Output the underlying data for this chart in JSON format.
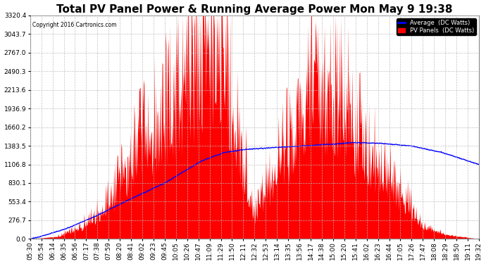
{
  "title": "Total PV Panel Power & Running Average Power Mon May 9 19:38",
  "copyright": "Copyright 2016 Cartronics.com",
  "legend_avg": "Average  (DC Watts)",
  "legend_pv": "PV Panels  (DC Watts)",
  "ylim": [
    0,
    3320.4
  ],
  "yticks": [
    0.0,
    276.7,
    553.4,
    830.1,
    1106.8,
    1383.5,
    1660.2,
    1936.9,
    2213.6,
    2490.3,
    2767.0,
    3043.7,
    3320.4
  ],
  "xtick_labels": [
    "05:30",
    "05:54",
    "06:14",
    "06:35",
    "06:56",
    "07:17",
    "07:38",
    "07:59",
    "08:20",
    "08:41",
    "09:02",
    "09:23",
    "09:45",
    "10:05",
    "10:26",
    "10:47",
    "11:09",
    "11:29",
    "11:50",
    "12:11",
    "12:32",
    "12:53",
    "13:14",
    "13:35",
    "13:56",
    "14:17",
    "14:38",
    "15:00",
    "15:20",
    "15:41",
    "16:02",
    "16:23",
    "16:44",
    "17:05",
    "17:26",
    "17:47",
    "18:08",
    "18:29",
    "18:50",
    "19:11",
    "19:32"
  ],
  "background_color": "#ffffff",
  "grid_color": "#bbbbbb",
  "bar_color": "#ff0000",
  "avg_line_color": "#0000ff",
  "title_fontsize": 11,
  "axis_fontsize": 6.5,
  "avg_keypoints_x": [
    0.0,
    0.02,
    0.08,
    0.15,
    0.22,
    0.3,
    0.38,
    0.43,
    0.48,
    0.53,
    0.58,
    0.63,
    0.68,
    0.72,
    0.78,
    0.85,
    0.92,
    1.0
  ],
  "avg_keypoints_y": [
    0,
    30,
    150,
    350,
    580,
    830,
    1150,
    1280,
    1330,
    1350,
    1370,
    1390,
    1410,
    1430,
    1420,
    1380,
    1280,
    1106
  ]
}
